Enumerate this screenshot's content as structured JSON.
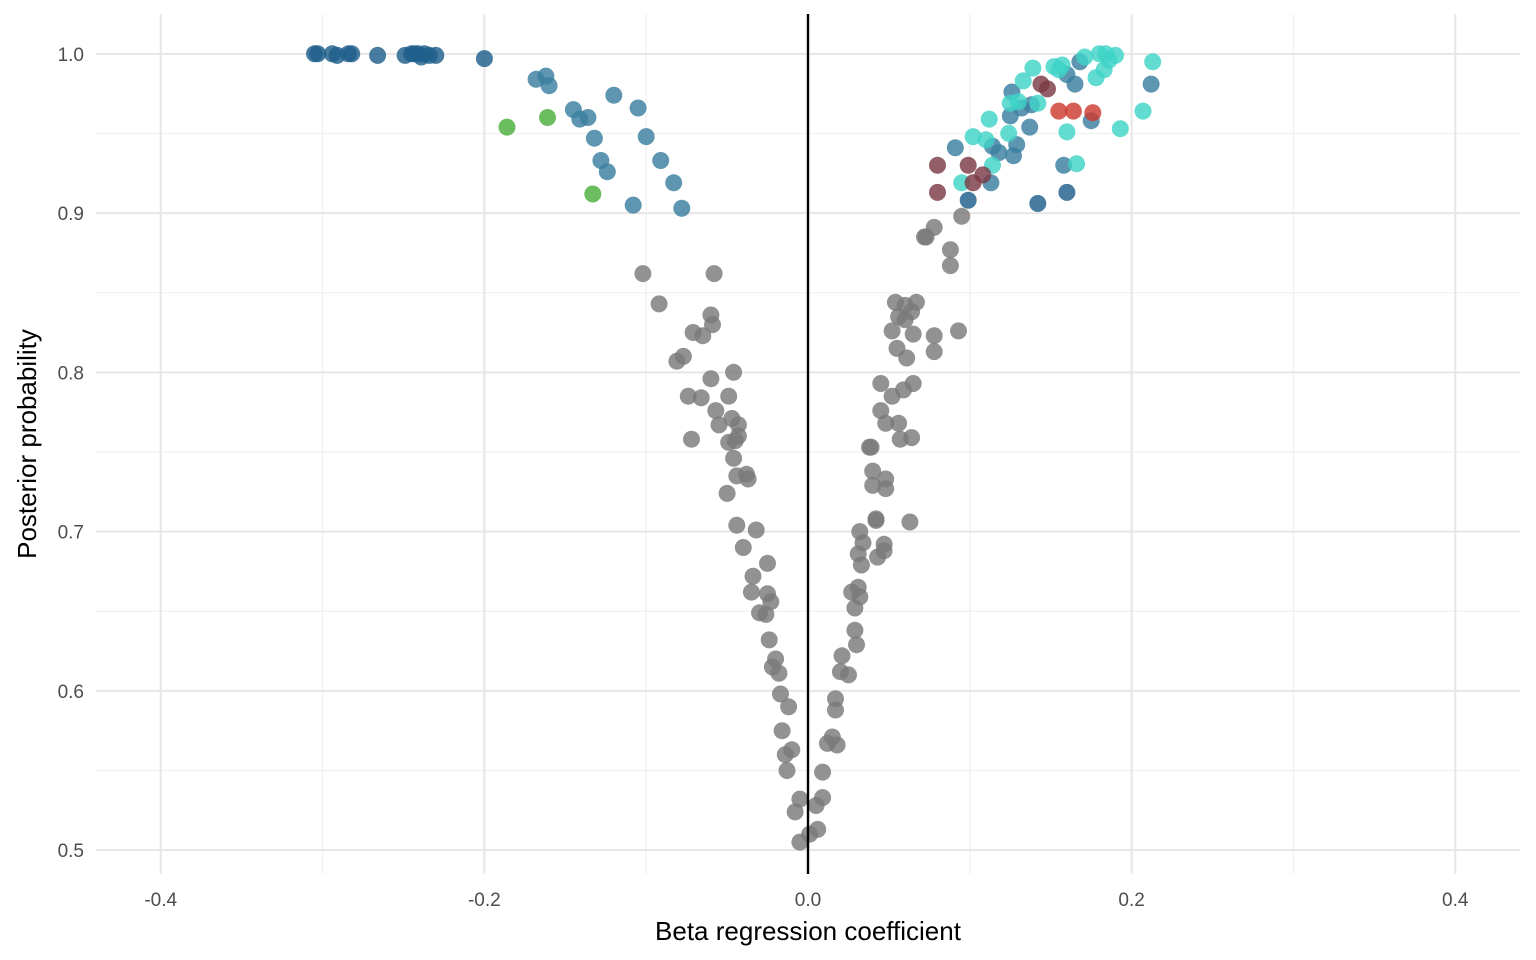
{
  "chart_data": {
    "type": "scatter",
    "title": "",
    "xlabel": "Beta regression coefficient",
    "ylabel": "Posterior probability",
    "xlim": [
      -0.44,
      0.44
    ],
    "ylim": [
      0.485,
      1.025
    ],
    "x_ticks": [
      -0.4,
      -0.2,
      0.0,
      0.2,
      0.4
    ],
    "x_tick_labels": [
      "-0.4",
      "-0.2",
      "0.0",
      "0.2",
      "0.4"
    ],
    "x_minor_ticks": [
      -0.3,
      -0.1,
      0.1,
      0.3
    ],
    "y_ticks": [
      0.5,
      0.6,
      0.7,
      0.8,
      0.9,
      1.0
    ],
    "y_tick_labels": [
      "0.5",
      "0.6",
      "0.7",
      "0.8",
      "0.9",
      "1.0"
    ],
    "y_minor_ticks": [
      0.55,
      0.65,
      0.75,
      0.85,
      0.95
    ],
    "grid": true,
    "legend": "none",
    "vline_x": 0.0,
    "colors": {
      "grid_major": "#e6e6e6",
      "grid_minor": "#f0f0f0",
      "tick_text": "#4d4d4d",
      "zero_line": "#000000"
    },
    "series": [
      {
        "color": "#7a7a7a",
        "points": [
          [
            -0.005,
            0.505
          ],
          [
            0.001,
            0.51
          ],
          [
            0.006,
            0.513
          ],
          [
            -0.008,
            0.524
          ],
          [
            0.005,
            0.528
          ],
          [
            0.009,
            0.533
          ],
          [
            -0.005,
            0.532
          ],
          [
            0.009,
            0.549
          ],
          [
            -0.013,
            0.55
          ],
          [
            0.012,
            0.567
          ],
          [
            0.018,
            0.566
          ],
          [
            -0.014,
            0.56
          ],
          [
            -0.01,
            0.563
          ],
          [
            0.015,
            0.571
          ],
          [
            -0.016,
            0.575
          ],
          [
            0.017,
            0.588
          ],
          [
            -0.012,
            0.59
          ],
          [
            0.017,
            0.595
          ],
          [
            -0.017,
            0.598
          ],
          [
            0.02,
            0.612
          ],
          [
            -0.018,
            0.611
          ],
          [
            0.025,
            0.61
          ],
          [
            -0.022,
            0.615
          ],
          [
            0.021,
            0.622
          ],
          [
            -0.02,
            0.62
          ],
          [
            0.03,
            0.629
          ],
          [
            -0.024,
            0.632
          ],
          [
            0.029,
            0.638
          ],
          [
            -0.026,
            0.648
          ],
          [
            0.032,
            0.659
          ],
          [
            -0.03,
            0.649
          ],
          [
            0.029,
            0.652
          ],
          [
            -0.023,
            0.656
          ],
          [
            0.031,
            0.665
          ],
          [
            -0.025,
            0.661
          ],
          [
            0.027,
            0.662
          ],
          [
            -0.034,
            0.672
          ],
          [
            0.033,
            0.679
          ],
          [
            -0.035,
            0.662
          ],
          [
            -0.025,
            0.68
          ],
          [
            0.031,
            0.686
          ],
          [
            -0.04,
            0.69
          ],
          [
            0.034,
            0.693
          ],
          [
            -0.032,
            0.701
          ],
          [
            0.043,
            0.684
          ],
          [
            -0.044,
            0.704
          ],
          [
            0.032,
            0.7
          ],
          [
            0.047,
            0.692
          ],
          [
            0.047,
            0.688
          ],
          [
            0.063,
            0.706
          ],
          [
            -0.05,
            0.724
          ],
          [
            0.042,
            0.707
          ],
          [
            0.042,
            0.708
          ],
          [
            -0.037,
            0.733
          ],
          [
            0.04,
            0.729
          ],
          [
            0.048,
            0.727
          ],
          [
            -0.044,
            0.735
          ],
          [
            0.048,
            0.733
          ],
          [
            -0.046,
            0.746
          ],
          [
            0.04,
            0.738
          ],
          [
            -0.038,
            0.736
          ],
          [
            -0.043,
            0.76
          ],
          [
            0.038,
            0.753
          ],
          [
            0.039,
            0.753
          ],
          [
            -0.045,
            0.757
          ],
          [
            0.057,
            0.758
          ],
          [
            0.064,
            0.759
          ],
          [
            -0.049,
            0.756
          ],
          [
            -0.072,
            0.758
          ],
          [
            -0.047,
            0.771
          ],
          [
            0.056,
            0.768
          ],
          [
            -0.043,
            0.767
          ],
          [
            0.048,
            0.768
          ],
          [
            0.045,
            0.776
          ],
          [
            -0.055,
            0.767
          ],
          [
            -0.057,
            0.776
          ],
          [
            -0.049,
            0.785
          ],
          [
            -0.066,
            0.784
          ],
          [
            -0.074,
            0.785
          ],
          [
            0.052,
            0.785
          ],
          [
            0.059,
            0.789
          ],
          [
            0.065,
            0.793
          ],
          [
            0.045,
            0.793
          ],
          [
            -0.046,
            0.8
          ],
          [
            -0.06,
            0.796
          ],
          [
            -0.077,
            0.81
          ],
          [
            -0.081,
            0.807
          ],
          [
            0.061,
            0.809
          ],
          [
            0.055,
            0.815
          ],
          [
            0.078,
            0.813
          ],
          [
            -0.059,
            0.83
          ],
          [
            -0.065,
            0.823
          ],
          [
            -0.071,
            0.825
          ],
          [
            0.052,
            0.826
          ],
          [
            0.065,
            0.824
          ],
          [
            0.078,
            0.823
          ],
          [
            0.093,
            0.826
          ],
          [
            -0.06,
            0.836
          ],
          [
            0.06,
            0.833
          ],
          [
            0.064,
            0.838
          ],
          [
            0.056,
            0.835
          ],
          [
            0.06,
            0.842
          ],
          [
            0.067,
            0.844
          ],
          [
            0.054,
            0.844
          ],
          [
            -0.092,
            0.843
          ],
          [
            -0.102,
            0.862
          ],
          [
            -0.058,
            0.862
          ],
          [
            0.088,
            0.867
          ],
          [
            0.088,
            0.877
          ],
          [
            0.073,
            0.885
          ],
          [
            0.078,
            0.891
          ],
          [
            0.095,
            0.898
          ],
          [
            0.072,
            0.885
          ]
        ]
      },
      {
        "color": "#1f5f8b",
        "points": [
          [
            -0.305,
            1.0
          ],
          [
            -0.303,
            1.0
          ],
          [
            -0.294,
            1.0
          ],
          [
            -0.291,
            0.999
          ],
          [
            -0.284,
            1.0
          ],
          [
            -0.282,
            1.0
          ],
          [
            -0.266,
            0.999
          ],
          [
            -0.249,
            0.999
          ],
          [
            -0.245,
            1.0
          ],
          [
            -0.243,
            1.0
          ],
          [
            -0.241,
            1.0
          ],
          [
            -0.239,
            0.998
          ],
          [
            -0.237,
            1.0
          ],
          [
            -0.234,
            0.999
          ],
          [
            -0.23,
            0.999
          ],
          [
            -0.2,
            0.997
          ],
          [
            0.16,
            0.913
          ],
          [
            0.142,
            0.906
          ],
          [
            0.099,
            0.908
          ]
        ]
      },
      {
        "color": "#3b7fa0",
        "points": [
          [
            -0.168,
            0.984
          ],
          [
            -0.162,
            0.986
          ],
          [
            -0.16,
            0.98
          ],
          [
            -0.145,
            0.965
          ],
          [
            -0.141,
            0.959
          ],
          [
            -0.136,
            0.96
          ],
          [
            -0.132,
            0.947
          ],
          [
            -0.128,
            0.933
          ],
          [
            -0.124,
            0.926
          ],
          [
            -0.105,
            0.966
          ],
          [
            -0.1,
            0.948
          ],
          [
            -0.091,
            0.933
          ],
          [
            -0.083,
            0.919
          ],
          [
            -0.078,
            0.903
          ],
          [
            -0.108,
            0.905
          ],
          [
            -0.12,
            0.974
          ],
          [
            0.091,
            0.941
          ],
          [
            0.114,
            0.942
          ],
          [
            0.118,
            0.938
          ],
          [
            0.127,
            0.936
          ],
          [
            0.129,
            0.943
          ],
          [
            0.125,
            0.961
          ],
          [
            0.126,
            0.976
          ],
          [
            0.132,
            0.966
          ],
          [
            0.137,
            0.954
          ],
          [
            0.138,
            0.968
          ],
          [
            0.16,
            0.987
          ],
          [
            0.165,
            0.981
          ],
          [
            0.168,
            0.995
          ],
          [
            0.175,
            0.958
          ],
          [
            0.212,
            0.981
          ],
          [
            0.113,
            0.919
          ],
          [
            0.158,
            0.93
          ]
        ]
      },
      {
        "color": "#3fd3c7",
        "points": [
          [
            0.102,
            0.948
          ],
          [
            0.11,
            0.946
          ],
          [
            0.114,
            0.93
          ],
          [
            0.124,
            0.95
          ],
          [
            0.13,
            0.97
          ],
          [
            0.133,
            0.983
          ],
          [
            0.139,
            0.991
          ],
          [
            0.142,
            0.969
          ],
          [
            0.152,
            0.992
          ],
          [
            0.155,
            0.99
          ],
          [
            0.157,
            0.993
          ],
          [
            0.16,
            0.951
          ],
          [
            0.166,
            0.931
          ],
          [
            0.171,
            0.998
          ],
          [
            0.178,
            0.985
          ],
          [
            0.18,
            1.0
          ],
          [
            0.183,
            0.99
          ],
          [
            0.184,
            1.0
          ],
          [
            0.186,
            0.996
          ],
          [
            0.19,
            0.999
          ],
          [
            0.193,
            0.953
          ],
          [
            0.207,
            0.964
          ],
          [
            0.213,
            0.995
          ],
          [
            0.112,
            0.959
          ],
          [
            0.095,
            0.919
          ],
          [
            0.125,
            0.969
          ]
        ]
      },
      {
        "color": "#7b3a46",
        "points": [
          [
            0.08,
            0.913
          ],
          [
            0.08,
            0.93
          ],
          [
            0.099,
            0.93
          ],
          [
            0.102,
            0.919
          ],
          [
            0.108,
            0.924
          ],
          [
            0.144,
            0.981
          ],
          [
            0.148,
            0.978
          ]
        ]
      },
      {
        "color": "#cc3b2f",
        "points": [
          [
            0.155,
            0.964
          ],
          [
            0.164,
            0.964
          ],
          [
            0.176,
            0.963
          ]
        ]
      },
      {
        "color": "#4caf3c",
        "points": [
          [
            -0.186,
            0.954
          ],
          [
            -0.161,
            0.96
          ],
          [
            -0.133,
            0.912
          ]
        ]
      }
    ]
  }
}
